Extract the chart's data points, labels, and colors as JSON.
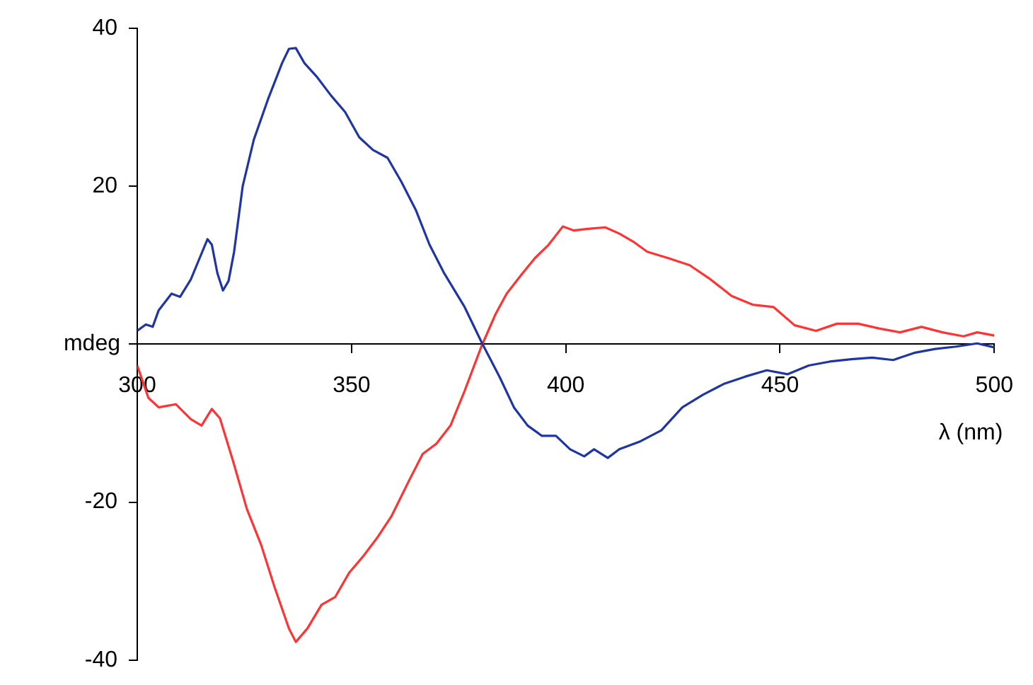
{
  "chart_data": {
    "type": "line",
    "xlabel": "λ (nm)",
    "ylabel": "mdeg",
    "xlim": [
      300,
      500
    ],
    "xticks": [
      300,
      350,
      400,
      450,
      500
    ],
    "ylim": [
      -40,
      40
    ],
    "yticks": [
      -40,
      -20,
      {
        "value": 0,
        "label": null
      },
      20,
      40
    ],
    "grid": false,
    "legend": false,
    "marker": "none",
    "line_style": "solid",
    "series": [
      {
        "color": "#1f35a5",
        "x": [
          300,
          302,
          303.6,
          305,
          308,
          310,
          312.5,
          314.4,
          316.4,
          317.4,
          318.7,
          320,
          321.3,
          322.6,
          324.6,
          327.2,
          330.5,
          333.8,
          335.4,
          337,
          339,
          342,
          345.2,
          348.5,
          351.8,
          355,
          358.4,
          361.6,
          365,
          368.2,
          371.5,
          376.4,
          380.3,
          384.6,
          387.9,
          391.1,
          394.4,
          397.7,
          401,
          404.3,
          406.6,
          409.8,
          412.5,
          417.4,
          422.3,
          427.2,
          432,
          437,
          441.9,
          446.9,
          451.8,
          456.7,
          461.6,
          466.6,
          471.5,
          476.4,
          481.3,
          486.2,
          491.1,
          496,
          500
        ],
        "values": [
          1.7,
          2.5,
          2.2,
          4.3,
          6.4,
          6,
          8.2,
          10.7,
          13.3,
          12.6,
          9,
          6.8,
          8,
          11.7,
          20,
          25.9,
          31,
          35.6,
          37.4,
          37.5,
          35.6,
          33.8,
          31.5,
          29.4,
          26.2,
          24.6,
          23.6,
          20.6,
          17,
          12.6,
          9.1,
          4.7,
          0.3,
          -4.2,
          -8,
          -10.3,
          -11.6,
          -11.6,
          -13.3,
          -14.2,
          -13.3,
          -14.4,
          -13.3,
          -12.3,
          -10.9,
          -8,
          -6.4,
          -5,
          -4.1,
          -3.3,
          -3.8,
          -2.7,
          -2.2,
          -1.9,
          -1.7,
          -2,
          -1.1,
          -0.6,
          -0.3,
          0.1,
          -0.4
        ]
      },
      {
        "color": "#ff3333",
        "x": [
          300,
          302.6,
          305,
          309,
          312.5,
          315,
          317.4,
          319.3,
          322.3,
          325.6,
          328.9,
          332,
          335.4,
          337,
          339.7,
          343,
          346.2,
          349.5,
          352.8,
          356,
          359.3,
          363.3,
          366.6,
          369.8,
          373.1,
          376.4,
          380.3,
          383.6,
          386.2,
          389.5,
          392.8,
          396,
          399.3,
          401.9,
          405.2,
          409.2,
          412.5,
          415.7,
          419,
          423.9,
          428.9,
          433.8,
          438.7,
          443.6,
          448.5,
          453.4,
          458.4,
          463.3,
          468.2,
          473.1,
          478,
          483,
          487.9,
          492.8,
          496,
          500
        ],
        "values": [
          -2.7,
          -6.8,
          -8,
          -7.6,
          -9.5,
          -10.3,
          -8.2,
          -9.4,
          -14.7,
          -20.9,
          -25.4,
          -30.7,
          -36,
          -37.7,
          -36,
          -33,
          -32,
          -28.9,
          -26.8,
          -24.5,
          -21.8,
          -17.4,
          -13.9,
          -12.6,
          -10.3,
          -5.9,
          -0.3,
          3.8,
          6.4,
          8.7,
          10.9,
          12.6,
          14.9,
          14.4,
          14.6,
          14.8,
          14,
          13,
          11.7,
          10.9,
          10,
          8.2,
          6.1,
          5,
          4.7,
          2.4,
          1.7,
          2.6,
          2.6,
          2,
          1.5,
          2.2,
          1.5,
          1,
          1.5,
          1.1
        ]
      }
    ]
  }
}
